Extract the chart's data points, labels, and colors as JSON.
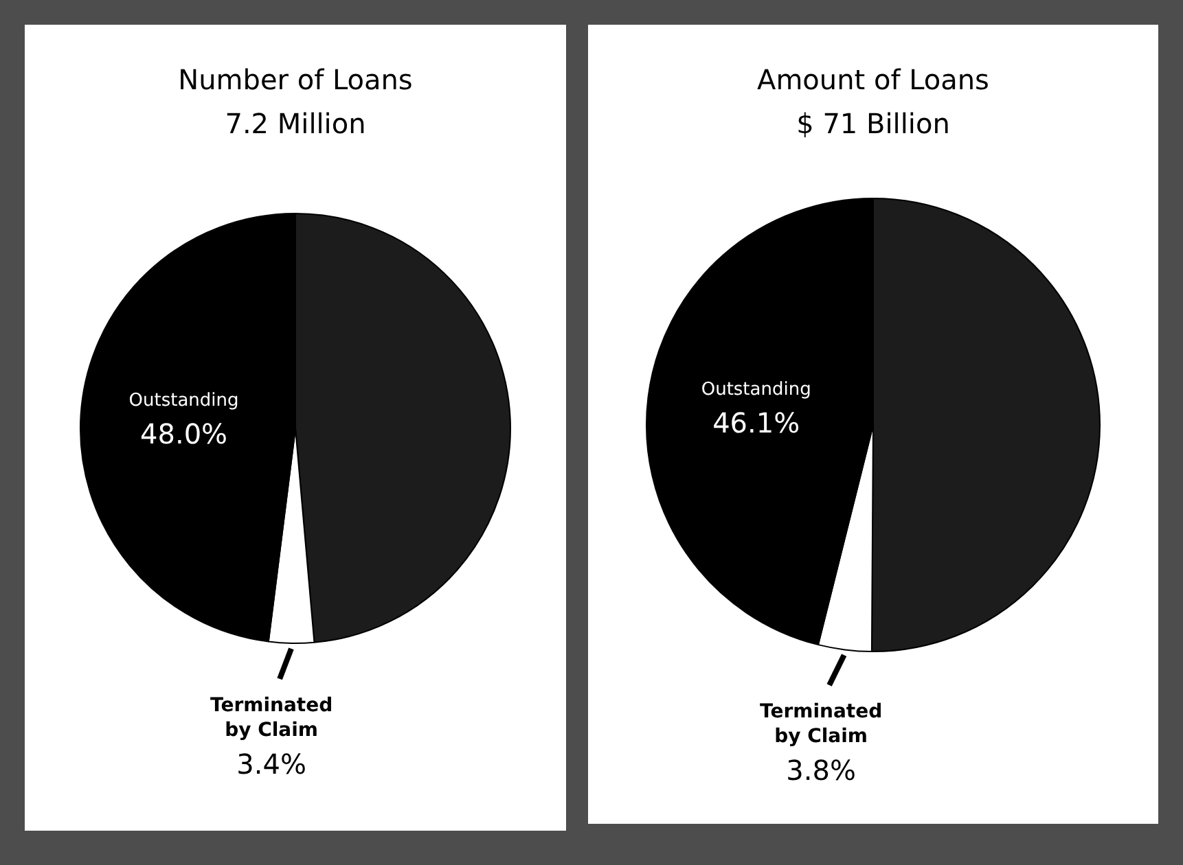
{
  "chart_data": [
    {
      "type": "pie",
      "title": "Number of Loans",
      "subtitle": "7.2 Million",
      "categories": [
        null,
        "Terminated\nby Claim",
        "Outstanding"
      ],
      "values": [
        48.6,
        3.4,
        48.0
      ],
      "value_labels": [
        null,
        "3.4%",
        "48.0%"
      ],
      "colors": [
        "#1c1c1c",
        "#ffffff",
        "#000000"
      ],
      "legend": false
    },
    {
      "type": "pie",
      "title": "Amount of Loans",
      "subtitle": "$ 71 Billion",
      "categories": [
        null,
        "Terminated\nby Claim",
        "Outstanding"
      ],
      "values": [
        50.1,
        3.8,
        46.1
      ],
      "value_labels": [
        null,
        "3.8%",
        "46.1%"
      ],
      "colors": [
        "#1c1c1c",
        "#ffffff",
        "#000000"
      ],
      "legend": false
    }
  ]
}
